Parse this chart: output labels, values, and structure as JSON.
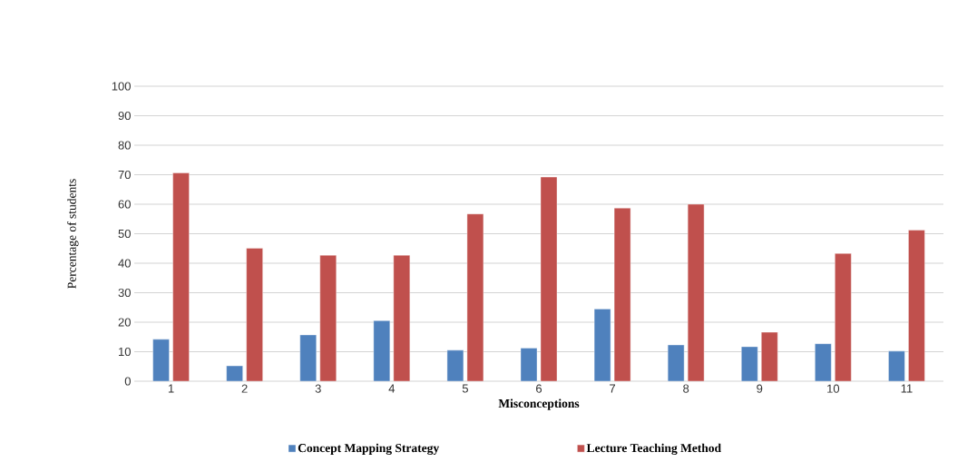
{
  "chart_data": {
    "type": "bar",
    "xlabel": "Misconceptions",
    "ylabel": "Percentage of  students",
    "categories": [
      "1",
      "2",
      "3",
      "4",
      "5",
      "6",
      "7",
      "8",
      "9",
      "10",
      "11"
    ],
    "series": [
      {
        "name": "Concept Mapping Strategy",
        "color": "#4f81bd",
        "values": [
          14.2,
          5.2,
          15.7,
          20.5,
          10.5,
          11.2,
          24.5,
          12.3,
          11.7,
          12.7,
          10.2
        ]
      },
      {
        "name": "Lecture Teaching Method",
        "color": "#c0504d",
        "values": [
          70.6,
          45.1,
          42.7,
          42.7,
          56.7,
          69.2,
          58.7,
          60.0,
          16.6,
          43.3,
          51.2
        ]
      }
    ],
    "ylim": [
      0,
      100
    ],
    "yticks": [
      0,
      10,
      20,
      30,
      40,
      50,
      60,
      70,
      80,
      90,
      100
    ],
    "grid": "y",
    "legend": "bottom"
  }
}
